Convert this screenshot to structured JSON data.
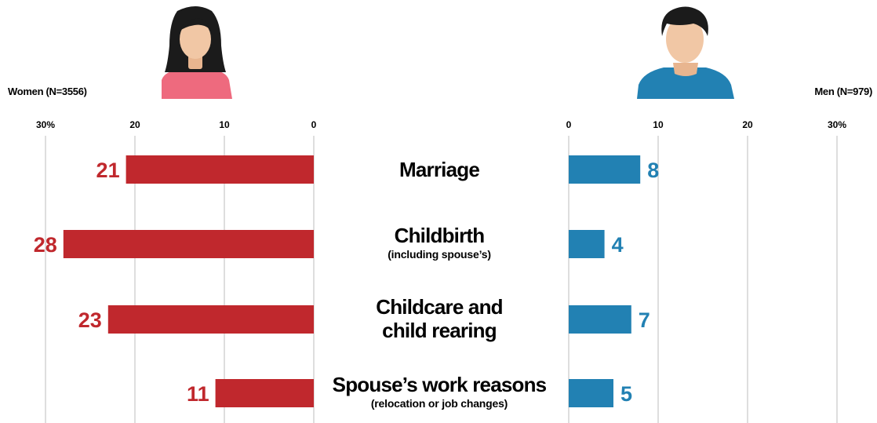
{
  "left_group_label": "Women (N=3556)",
  "right_group_label": "Men (N=979)",
  "colors": {
    "women": "#c0282d",
    "men": "#2281b3",
    "grid": "#bdbdbd"
  },
  "icons": {
    "women": "woman-avatar-icon",
    "men": "man-avatar-icon"
  },
  "chart_data": {
    "type": "bar",
    "orientation": "horizontal-diverging",
    "categories": [
      {
        "main": [
          "Marriage"
        ],
        "sub": ""
      },
      {
        "main": [
          "Childbirth"
        ],
        "sub": "(including spouse’s)"
      },
      {
        "main": [
          "Childcare and",
          "child rearing"
        ],
        "sub": ""
      },
      {
        "main": [
          "Spouse’s work reasons"
        ],
        "sub": "(relocation or job changes)"
      }
    ],
    "series": [
      {
        "name": "Women (N=3556)",
        "values": [
          21,
          28,
          23,
          11
        ]
      },
      {
        "name": "Men (N=979)",
        "values": [
          8,
          4,
          7,
          5
        ]
      }
    ],
    "xlim": [
      0,
      30
    ],
    "ticks": [
      0,
      10,
      20,
      30
    ],
    "tick_labels": [
      "0",
      "10",
      "20",
      "30%"
    ],
    "grid": true
  }
}
